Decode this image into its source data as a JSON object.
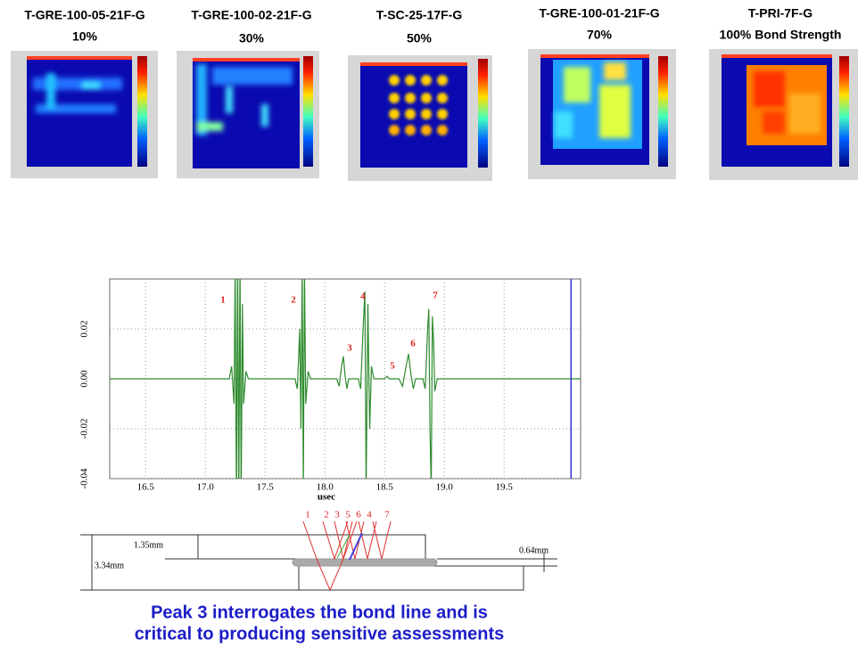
{
  "panels": [
    {
      "name": "T-GRE-100-05-21F-G",
      "label": "10%"
    },
    {
      "name": "T-GRE-100-02-21F-G",
      "label": "30%"
    },
    {
      "name": "T-SC-25-17F-G",
      "label": "50%"
    },
    {
      "name": "T-GRE-100-01-21F-G",
      "label": "70%"
    },
    {
      "name": "T-PRI-7F-G",
      "label": "100% Bond Strength"
    }
  ],
  "chart_data": {
    "type": "line",
    "xlabel": "usec",
    "x": [
      16.2,
      17.2,
      17.22,
      17.24,
      17.25,
      17.26,
      17.27,
      17.28,
      17.29,
      17.3,
      17.31,
      17.32,
      17.34,
      17.36,
      17.75,
      17.77,
      17.79,
      17.8,
      17.81,
      17.82,
      17.83,
      17.84,
      17.86,
      17.88,
      18.1,
      18.12,
      18.14,
      18.155,
      18.17,
      18.185,
      18.2,
      18.28,
      18.3,
      18.32,
      18.335,
      18.345,
      18.36,
      18.375,
      18.39,
      18.41,
      18.5,
      18.52,
      18.54,
      18.62,
      18.65,
      18.68,
      18.7,
      18.72,
      18.74,
      18.76,
      18.82,
      18.84,
      18.86,
      18.87,
      18.88,
      18.89,
      18.9,
      18.91,
      18.92,
      18.94,
      20.14
    ],
    "series": [
      {
        "color": "#2e8b2e",
        "values": [
          0,
          0,
          0.005,
          -0.01,
          0.045,
          -0.05,
          0.05,
          -0.05,
          0.05,
          -0.05,
          0.03,
          -0.01,
          0.003,
          0,
          0,
          -0.004,
          0.02,
          -0.02,
          0.045,
          -0.045,
          0.045,
          -0.01,
          0.003,
          0,
          0,
          -0.003,
          0.005,
          0.009,
          0.001,
          -0.004,
          0,
          0,
          -0.004,
          0.02,
          0.035,
          -0.045,
          0.03,
          -0.02,
          0.005,
          0,
          0,
          0.001,
          0,
          0,
          -0.003,
          0.005,
          0.01,
          0.002,
          -0.004,
          0,
          0,
          -0.004,
          0.02,
          0.028,
          -0.02,
          -0.045,
          0.025,
          0.015,
          -0.005,
          0,
          0
        ]
      }
    ],
    "xlim": [
      16.2,
      20.14
    ],
    "ylim": [
      -0.04,
      0.04
    ],
    "xticks": [
      16.5,
      {
        "value": 17,
        "label": "17.0"
      },
      17.5,
      {
        "value": 18,
        "label": "18.0"
      },
      18.5,
      {
        "value": 19,
        "label": "19.0"
      },
      19.5
    ],
    "yticks": [
      -0.04,
      -0.02,
      {
        "value": 0,
        "label": "0.00"
      },
      0.02
    ],
    "grid": true,
    "vline": 20.06,
    "vline_color": "#3333cc",
    "annotations": [
      "1",
      "2",
      "3",
      "4",
      "5",
      "6",
      "7"
    ]
  },
  "diagram": {
    "rays": [
      "1",
      "2",
      "3",
      "5",
      "6",
      "4",
      "7"
    ],
    "top_thickness": "1.35mm",
    "total_thickness": "3.34mm",
    "bond_thickness": "0.64mm"
  },
  "caption": [
    "Peak 3 interrogates the bond line and is",
    "critical to producing sensitive assessments"
  ]
}
